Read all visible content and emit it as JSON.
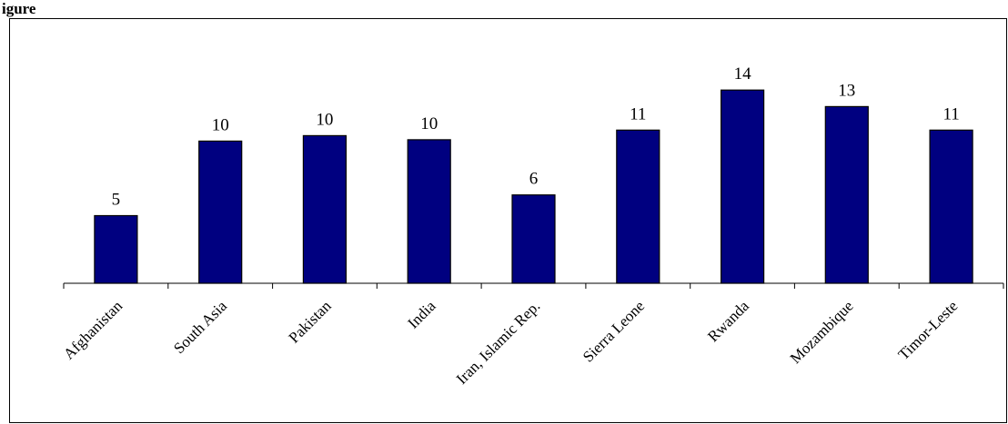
{
  "figure": {
    "title": "igure"
  },
  "colors": {
    "bar_fill": "#000080",
    "bar_stroke": "#000000",
    "axis": "#000000"
  },
  "chart_data": {
    "type": "bar",
    "title": "",
    "xlabel": "",
    "ylabel": "",
    "categories": [
      "Afghanistan",
      "South Asia",
      "Pakistan",
      "India",
      "Iran, Islamic Rep.",
      "Sierra Leone",
      "Rwanda",
      "Mozambique",
      "Timor-Leste"
    ],
    "values": [
      5,
      10,
      10,
      10,
      6,
      11,
      14,
      13,
      11
    ],
    "heights": [
      4.9,
      10.3,
      10.7,
      10.4,
      6.4,
      11.1,
      14.0,
      12.8,
      11.1
    ],
    "data_labels": [
      "5",
      "10",
      "10",
      "10",
      "6",
      "11",
      "14",
      "13",
      "11"
    ],
    "ylim": [
      0,
      14
    ],
    "y_axis_visible": false,
    "grid": false,
    "legend": "none"
  }
}
